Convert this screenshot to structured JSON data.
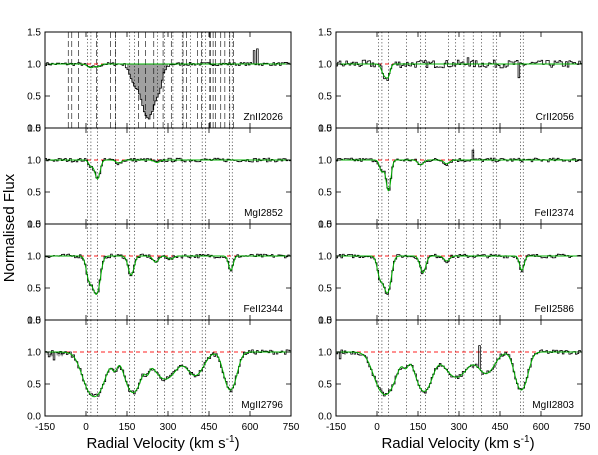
{
  "figure": {
    "ylabel": "Normalised Flux",
    "xlabel_left": "Radial Velocity (km s",
    "xlabel_right": "Radial Velocity (km s",
    "xlabel_sup": "-1",
    "xlabel_close": ")"
  },
  "chart_data": {
    "type": "line",
    "xlim": [
      -150,
      750
    ],
    "ylim": [
      0.0,
      1.5
    ],
    "x_ticks": [
      -150,
      0,
      150,
      300,
      450,
      600,
      750
    ],
    "y_ticks": [
      0.0,
      0.5,
      1.0,
      1.5
    ],
    "grid": false,
    "component_velocities": [
      5,
      18,
      42,
      108,
      160,
      178,
      262,
      288,
      318,
      352,
      382,
      425,
      438,
      525,
      535
    ],
    "zn_extra_component_velocities": [
      478,
      493,
      523,
      543,
      563,
      578,
      596,
      610
    ],
    "colors": {
      "data": "#000000",
      "model": "#00b000",
      "continuum": "#ff2020",
      "blend": "#a0a0a0",
      "tick_lines": "#000000"
    },
    "panels": [
      {
        "ion": "ZnII2026",
        "column": "left",
        "row": 0,
        "dips": [
          [
            18,
            12,
            0.06
          ],
          [
            45,
            8,
            0.04
          ]
        ],
        "blend": [
          {
            "c": 228,
            "w": 28,
            "d": 0.85
          },
          {
            "c": 172,
            "w": 12,
            "d": 0.2
          },
          {
            "c": 270,
            "w": 10,
            "d": 0.15
          }
        ],
        "noise": 0.025,
        "spikes": [
          [
            625,
            0.25
          ],
          [
            612,
            0.2
          ]
        ]
      },
      {
        "ion": "CrII2056",
        "column": "right",
        "row": 0,
        "dips": [
          [
            28,
            10,
            0.2
          ],
          [
            42,
            7,
            0.15
          ]
        ],
        "noise": 0.06,
        "spikes": [
          [
            515,
            -0.25
          ],
          [
            330,
            0.15
          ]
        ]
      },
      {
        "ion": "MgI2852",
        "column": "left",
        "row": 1,
        "dips": [
          [
            42,
            9,
            0.35
          ],
          [
            18,
            8,
            0.1
          ],
          [
            120,
            10,
            0.05
          ],
          [
            260,
            10,
            0.04
          ]
        ],
        "noise": 0.03,
        "spikes": []
      },
      {
        "ion": "FeII2374",
        "column": "right",
        "row": 1,
        "dips": [
          [
            42,
            8,
            0.65
          ],
          [
            18,
            8,
            0.2
          ],
          [
            160,
            10,
            0.08
          ],
          [
            255,
            10,
            0.06
          ]
        ],
        "noise": 0.03,
        "spikes": [
          [
            345,
            0.15
          ]
        ]
      },
      {
        "ion": "FeII2344",
        "column": "left",
        "row": 2,
        "dips": [
          [
            38,
            12,
            0.9
          ],
          [
            12,
            10,
            0.45
          ],
          [
            165,
            10,
            0.35
          ],
          [
            255,
            10,
            0.1
          ],
          [
            310,
            10,
            0.05
          ],
          [
            530,
            8,
            0.25
          ]
        ],
        "noise": 0.03,
        "spikes": []
      },
      {
        "ion": "FeII2586",
        "column": "right",
        "row": 2,
        "dips": [
          [
            38,
            12,
            0.85
          ],
          [
            12,
            10,
            0.4
          ],
          [
            168,
            10,
            0.3
          ],
          [
            255,
            10,
            0.08
          ],
          [
            530,
            8,
            0.25
          ]
        ],
        "noise": 0.03,
        "spikes": []
      },
      {
        "ion": "MgII2796",
        "column": "left",
        "row": 3,
        "dips": [
          [
            30,
            32,
            1.2
          ],
          [
            172,
            26,
            1.0
          ],
          [
            290,
            38,
            0.55
          ],
          [
            400,
            28,
            0.45
          ],
          [
            528,
            20,
            0.9
          ],
          [
            105,
            10,
            0.25
          ],
          [
            225,
            8,
            0.2
          ]
        ],
        "noise": 0.035,
        "spikes": [
          [
            -140,
            -0.1
          ],
          [
            -120,
            -0.15
          ]
        ]
      },
      {
        "ion": "MgII2803",
        "column": "right",
        "row": 3,
        "dips": [
          [
            30,
            32,
            1.1
          ],
          [
            172,
            26,
            0.95
          ],
          [
            290,
            38,
            0.5
          ],
          [
            400,
            28,
            0.4
          ],
          [
            528,
            20,
            0.9
          ],
          [
            105,
            10,
            0.2
          ]
        ],
        "noise": 0.035,
        "spikes": [
          [
            370,
            0.35
          ],
          [
            -140,
            -0.1
          ]
        ]
      }
    ]
  }
}
